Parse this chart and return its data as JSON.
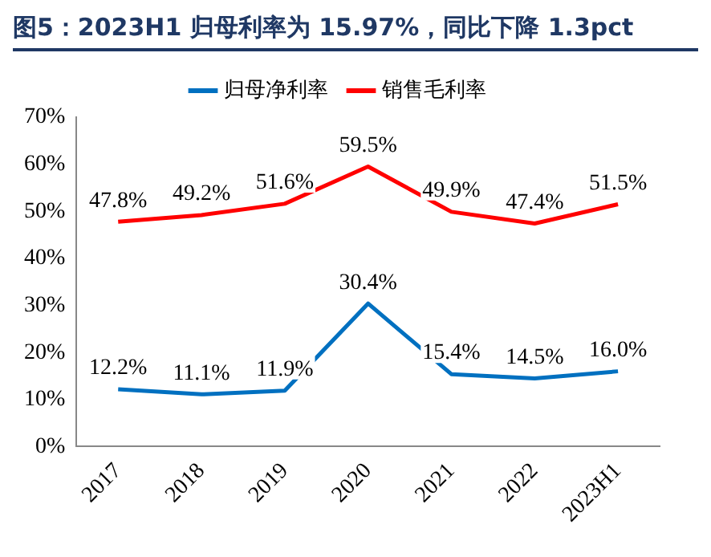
{
  "chart_data": {
    "type": "line",
    "title": "图5：2023H1 归母利率为 15.97%，同比下降 1.3pct",
    "categories": [
      "2017",
      "2018",
      "2019",
      "2020",
      "2021",
      "2022",
      "2023H1"
    ],
    "series": [
      {
        "name": "归母净利率",
        "color": "#0070c0",
        "values": [
          12.2,
          11.1,
          11.9,
          30.4,
          15.4,
          14.5,
          16.0
        ],
        "value_labels": [
          "12.2%",
          "11.1%",
          "11.9%",
          "30.4%",
          "15.4%",
          "14.5%",
          "16.0%"
        ]
      },
      {
        "name": "销售毛利率",
        "color": "#ff0000",
        "values": [
          47.8,
          49.2,
          51.6,
          59.5,
          49.9,
          47.4,
          51.5
        ],
        "value_labels": [
          "47.8%",
          "49.2%",
          "51.6%",
          "59.5%",
          "49.9%",
          "47.4%",
          "51.5%"
        ]
      }
    ],
    "ylim": [
      0,
      70
    ],
    "yticks": [
      {
        "value": 0,
        "label": "0%"
      },
      {
        "value": 10,
        "label": "10%"
      },
      {
        "value": 20,
        "label": "20%"
      },
      {
        "value": 30,
        "label": "30%"
      },
      {
        "value": 40,
        "label": "40%"
      },
      {
        "value": 50,
        "label": "50%"
      },
      {
        "value": 60,
        "label": "60%"
      },
      {
        "value": 70,
        "label": "70%"
      }
    ],
    "grid": false,
    "legend": "top",
    "marker": "none",
    "line_style": "solid"
  }
}
